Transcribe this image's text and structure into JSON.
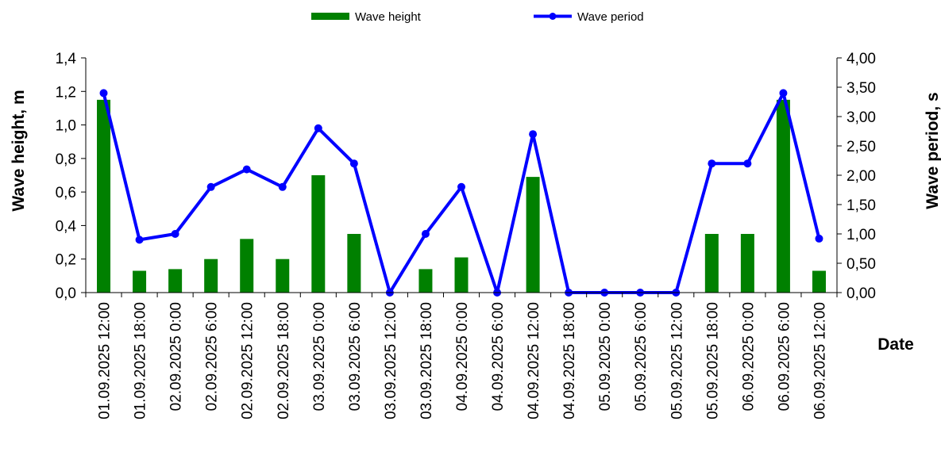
{
  "chart_data": {
    "type": "bar+line",
    "title": "",
    "xlabel": "Date",
    "categories": [
      "01.09.2025 12:00",
      "01.09.2025 18:00",
      "02.09.2025 0:00",
      "02.09.2025 6:00",
      "02.09.2025 12:00",
      "02.09.2025 18:00",
      "03.09.2025 0:00",
      "03.09.2025 6:00",
      "03.09.2025 12:00",
      "03.09.2025 18:00",
      "04.09.2025 0:00",
      "04.09.2025 6:00",
      "04.09.2025 12:00",
      "04.09.2025 18:00",
      "05.09.2025 0:00",
      "05.09.2025 6:00",
      "05.09.2025 12:00",
      "05.09.2025 18:00",
      "06.09.2025 0:00",
      "06.09.2025 6:00",
      "06.09.2025 12:00"
    ],
    "series": [
      {
        "name": "Wave height",
        "type": "bar",
        "axis": "left",
        "color": "#008000",
        "values": [
          1.15,
          0.13,
          0.14,
          0.2,
          0.32,
          0.2,
          0.7,
          0.35,
          0.0,
          0.14,
          0.21,
          0.0,
          0.69,
          0.0,
          0.0,
          0.0,
          0.0,
          0.35,
          0.35,
          1.15,
          0.13
        ]
      },
      {
        "name": "Wave period",
        "type": "line",
        "axis": "right",
        "color": "#0000ff",
        "values": [
          3.4,
          0.9,
          1.0,
          1.8,
          2.1,
          1.8,
          2.8,
          2.2,
          0.0,
          1.0,
          1.8,
          0.0,
          2.7,
          0.0,
          0.0,
          0.0,
          0.0,
          2.2,
          2.2,
          3.4,
          0.92
        ]
      }
    ],
    "y_left": {
      "label": "Wave height, m",
      "ylim": [
        0,
        1.4
      ],
      "ticks": [
        "0,0",
        "0,2",
        "0,4",
        "0,6",
        "0,8",
        "1,0",
        "1,2",
        "1,4"
      ]
    },
    "y_right": {
      "label": "Wave period, s",
      "ylim": [
        0,
        4.0
      ],
      "ticks": [
        "0,00",
        "0,50",
        "1,00",
        "1,50",
        "2,00",
        "2,50",
        "3,00",
        "3,50",
        "4,00"
      ]
    },
    "legend": {
      "placement": "top-center",
      "entries": [
        "Wave height",
        "Wave period"
      ]
    },
    "grid": false
  }
}
